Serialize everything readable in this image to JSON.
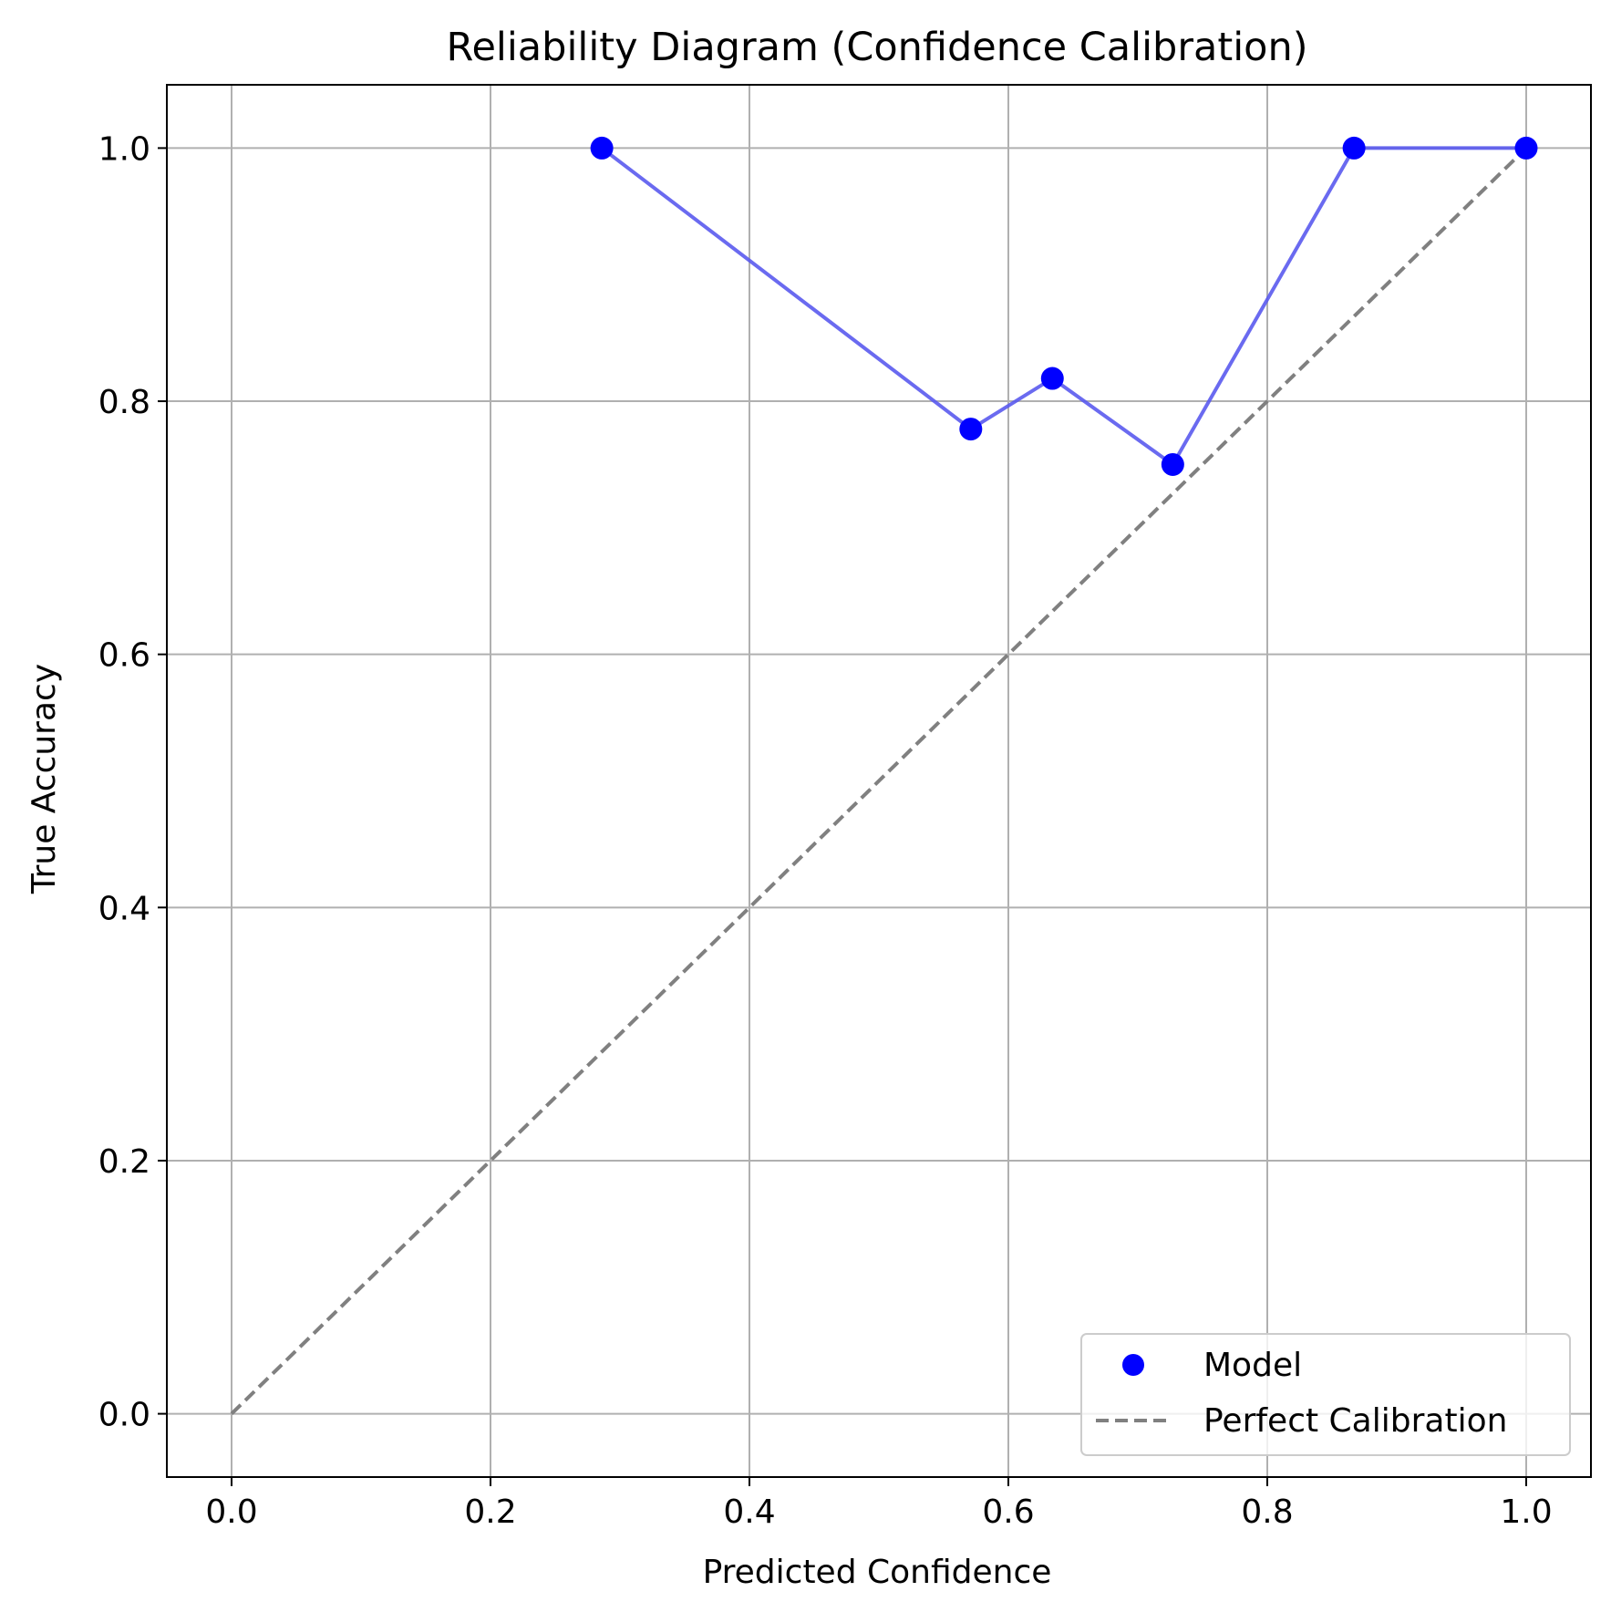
{
  "chart_data": {
    "type": "scatter",
    "title": "Reliability Diagram (Confidence Calibration)",
    "xlabel": "Predicted Confidence",
    "ylabel": "True Accuracy",
    "xlim": [
      -0.05,
      1.05
    ],
    "ylim": [
      -0.05,
      1.05
    ],
    "xticks": [
      "0.0",
      "0.2",
      "0.4",
      "0.6",
      "0.8",
      "1.0"
    ],
    "yticks": [
      "0.0",
      "0.2",
      "0.4",
      "0.6",
      "0.8",
      "1.0"
    ],
    "grid": true,
    "legend_position": "lower-right",
    "series": [
      {
        "name": "Model",
        "kind": "scatter+line",
        "color": "#0000ff",
        "line_color": "#5a5aee",
        "x": [
          0.286,
          0.571,
          0.634,
          0.727,
          0.867,
          1.0
        ],
        "y": [
          1.0,
          0.778,
          0.818,
          0.75,
          1.0,
          1.0
        ]
      },
      {
        "name": "Perfect Calibration",
        "kind": "dashed-line",
        "color": "#808080",
        "x": [
          0.0,
          1.0
        ],
        "y": [
          0.0,
          1.0
        ]
      }
    ]
  }
}
